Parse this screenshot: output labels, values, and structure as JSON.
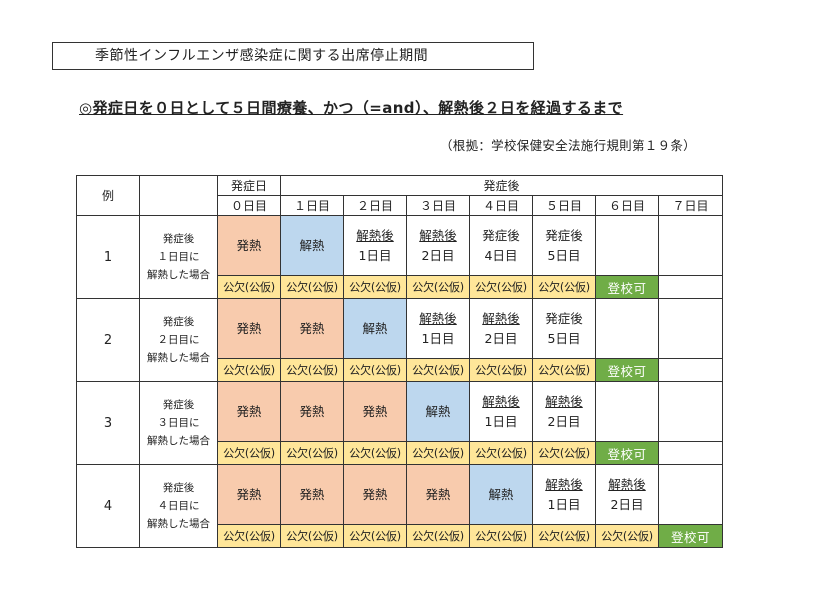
{
  "title": "季節性インフルエンザ感染症に関する出席停止期間",
  "headline": "◎発症日を０日として５日間療養、かつ（=and）、解熱後２日を経過するまで",
  "basis": "（根拠：学校保健安全法施行規則第１９条）",
  "table": {
    "header_example": "例",
    "header_onset": "発症日",
    "header_after": "発症後",
    "days": [
      "０日目",
      "１日目",
      "２日目",
      "３日目",
      "４日目",
      "５日目",
      "６日目",
      "７日目"
    ],
    "rows": [
      {
        "number": "1",
        "desc": [
          "発症後",
          "１日目に",
          "解熱した場合"
        ],
        "cells": [
          {
            "type": "fever",
            "lines": [
              "発熱"
            ]
          },
          {
            "type": "recovery",
            "lines": [
              "解熱"
            ]
          },
          {
            "type": "after",
            "lines": [
              "解熱後",
              "1日目"
            ],
            "underline": true
          },
          {
            "type": "after",
            "lines": [
              "解熱後",
              "2日目"
            ],
            "underline": true
          },
          {
            "type": "after",
            "lines": [
              "発症後",
              "4日目"
            ],
            "underline": false
          },
          {
            "type": "after",
            "lines": [
              "発症後",
              "5日目"
            ],
            "underline": false
          },
          {
            "type": "blank",
            "lines": []
          },
          {
            "type": "blank",
            "lines": []
          }
        ],
        "status": [
          "公欠(公仮)",
          "公欠(公仮)",
          "公欠(公仮)",
          "公欠(公仮)",
          "公欠(公仮)",
          "公欠(公仮)",
          "登校可",
          ""
        ]
      },
      {
        "number": "2",
        "desc": [
          "発症後",
          "２日目に",
          "解熱した場合"
        ],
        "cells": [
          {
            "type": "fever",
            "lines": [
              "発熱"
            ]
          },
          {
            "type": "fever",
            "lines": [
              "発熱"
            ]
          },
          {
            "type": "recovery",
            "lines": [
              "解熱"
            ]
          },
          {
            "type": "after",
            "lines": [
              "解熱後",
              "1日目"
            ],
            "underline": true
          },
          {
            "type": "after",
            "lines": [
              "解熱後",
              "2日目"
            ],
            "underline": true
          },
          {
            "type": "after",
            "lines": [
              "発症後",
              "5日目"
            ],
            "underline": false
          },
          {
            "type": "blank",
            "lines": []
          },
          {
            "type": "blank",
            "lines": []
          }
        ],
        "status": [
          "公欠(公仮)",
          "公欠(公仮)",
          "公欠(公仮)",
          "公欠(公仮)",
          "公欠(公仮)",
          "公欠(公仮)",
          "登校可",
          ""
        ]
      },
      {
        "number": "3",
        "desc": [
          "発症後",
          "３日目に",
          "解熱した場合"
        ],
        "cells": [
          {
            "type": "fever",
            "lines": [
              "発熱"
            ]
          },
          {
            "type": "fever",
            "lines": [
              "発熱"
            ]
          },
          {
            "type": "fever",
            "lines": [
              "発熱"
            ]
          },
          {
            "type": "recovery",
            "lines": [
              "解熱"
            ]
          },
          {
            "type": "after",
            "lines": [
              "解熱後",
              "1日目"
            ],
            "underline": true
          },
          {
            "type": "after",
            "lines": [
              "解熱後",
              "2日目"
            ],
            "underline": true
          },
          {
            "type": "blank",
            "lines": []
          },
          {
            "type": "blank",
            "lines": []
          }
        ],
        "status": [
          "公欠(公仮)",
          "公欠(公仮)",
          "公欠(公仮)",
          "公欠(公仮)",
          "公欠(公仮)",
          "公欠(公仮)",
          "登校可",
          ""
        ]
      },
      {
        "number": "4",
        "desc": [
          "発症後",
          "４日目に",
          "解熱した場合"
        ],
        "cells": [
          {
            "type": "fever",
            "lines": [
              "発熱"
            ]
          },
          {
            "type": "fever",
            "lines": [
              "発熱"
            ]
          },
          {
            "type": "fever",
            "lines": [
              "発熱"
            ]
          },
          {
            "type": "fever",
            "lines": [
              "発熱"
            ]
          },
          {
            "type": "recovery",
            "lines": [
              "解熱"
            ]
          },
          {
            "type": "after",
            "lines": [
              "解熱後",
              "1日目"
            ],
            "underline": true
          },
          {
            "type": "after",
            "lines": [
              "解熱後",
              "2日目"
            ],
            "underline": true
          },
          {
            "type": "blank",
            "lines": []
          }
        ],
        "status": [
          "公欠(公仮)",
          "公欠(公仮)",
          "公欠(公仮)",
          "公欠(公仮)",
          "公欠(公仮)",
          "公欠(公仮)",
          "公欠(公仮)",
          "登校可"
        ]
      }
    ]
  },
  "colors": {
    "fever": "#f8cbad",
    "recovery": "#bdd7ee",
    "absence": "#ffe699",
    "ok": "#70ad47"
  }
}
